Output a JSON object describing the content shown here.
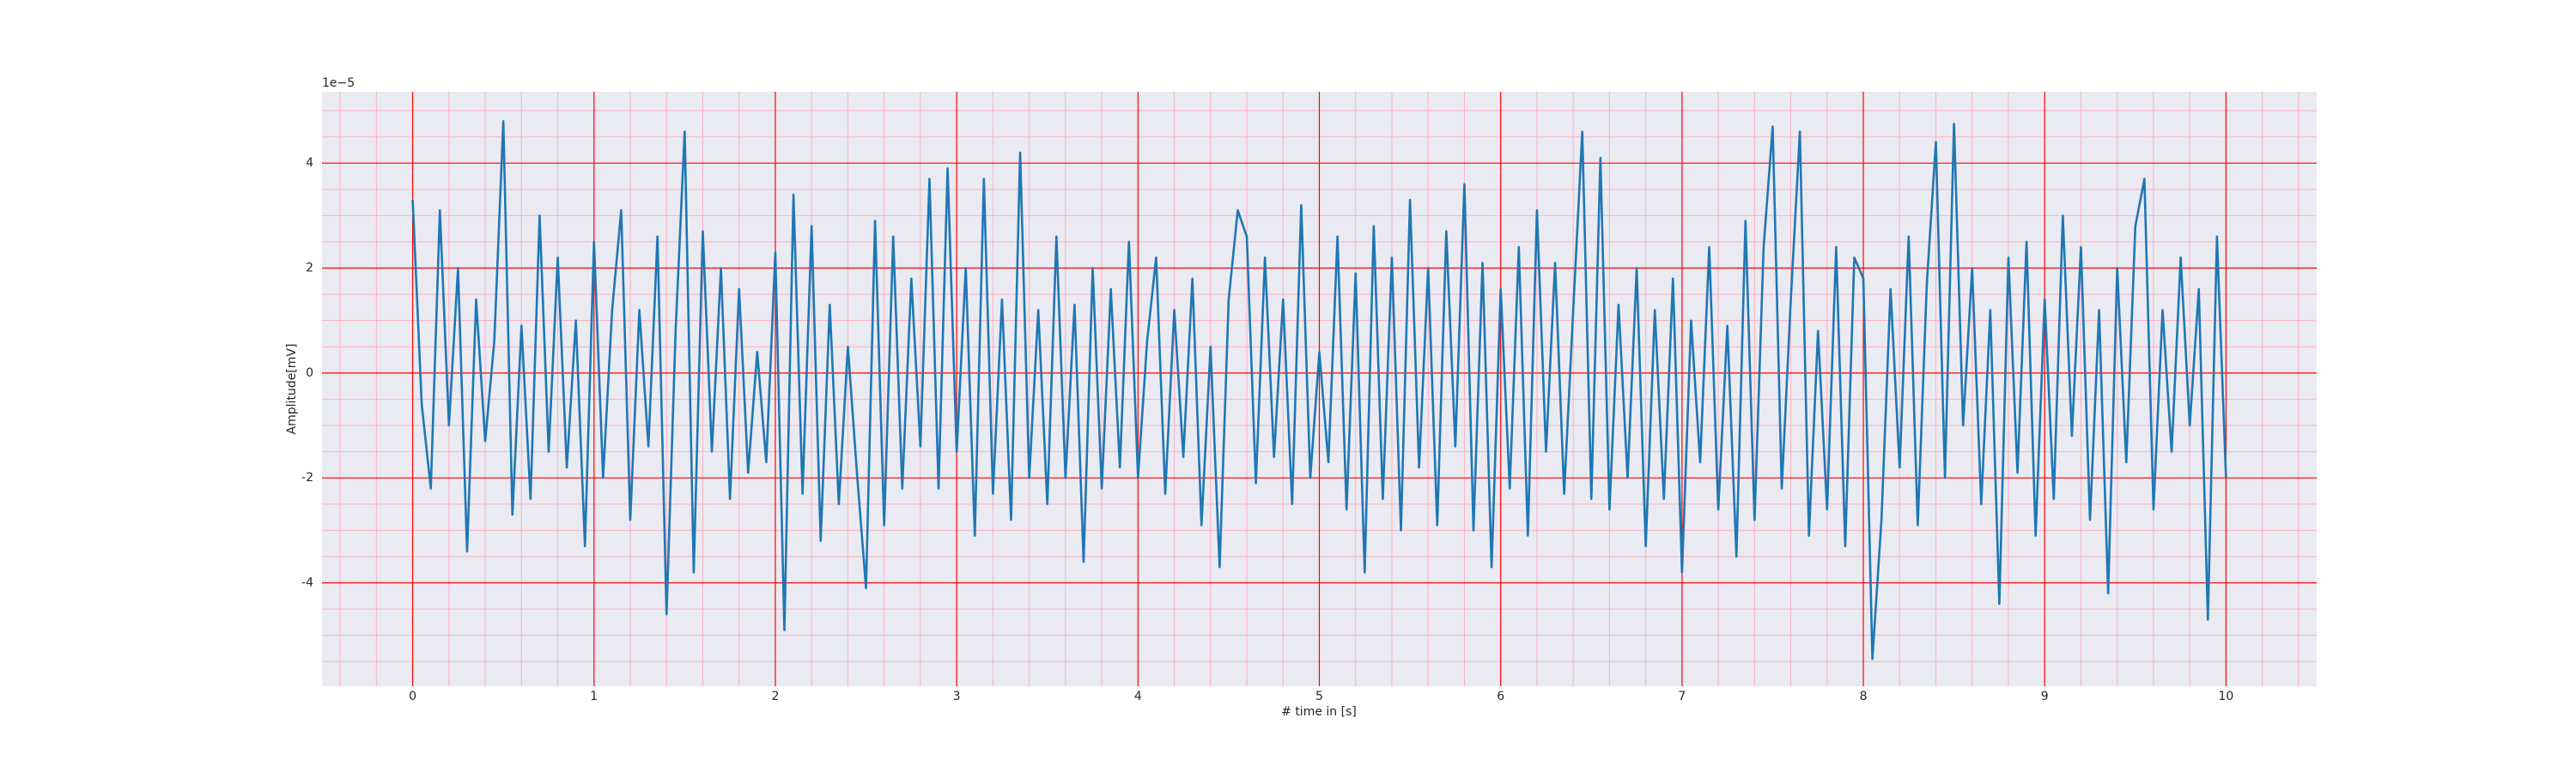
{
  "chart_data": {
    "type": "line",
    "xlabel": "# time in [s]",
    "ylabel": "Amplitude[mV]",
    "y_offset_label": "1e−5",
    "color": "#1f77b4",
    "background": "#eaeaf2",
    "grid": true,
    "grid_color": "#ff0000",
    "minor_grid_color": "#ffb0c0",
    "xlim": [
      -0.5,
      10.5
    ],
    "xticks": [
      0,
      1,
      2,
      3,
      4,
      5,
      6,
      7,
      8,
      9,
      10
    ],
    "xminorticks": [
      -0.4,
      -0.2,
      0.2,
      0.4,
      0.6,
      0.8,
      1.2,
      1.4,
      1.6,
      1.8,
      2.2,
      2.4,
      2.6,
      2.8,
      3.2,
      3.4,
      3.6,
      3.8,
      4.2,
      4.4,
      4.6,
      4.8,
      5.2,
      5.4,
      5.6,
      5.8,
      6.2,
      6.4,
      6.6,
      6.8,
      7.2,
      7.4,
      7.6,
      7.8,
      8.2,
      8.4,
      8.6,
      8.8,
      9.2,
      9.4,
      9.6,
      9.8,
      10.2,
      10.4
    ],
    "ylim": [
      -5.97,
      5.36
    ],
    "yticks": [
      -4,
      -2,
      0,
      2,
      4
    ],
    "yminorticks": [
      -5.5,
      -5,
      -4.5,
      -3.5,
      -3,
      -2.5,
      -1.5,
      -1,
      -0.5,
      0.5,
      1,
      1.5,
      2.5,
      3,
      3.5,
      4.5,
      5
    ],
    "x": [
      0,
      0.05,
      0.1,
      0.15,
      0.2,
      0.25,
      0.3,
      0.35,
      0.4,
      0.45,
      0.5,
      0.55,
      0.6,
      0.65,
      0.7,
      0.75,
      0.8,
      0.85,
      0.9,
      0.95,
      1,
      1.05,
      1.1,
      1.15,
      1.2,
      1.25,
      1.3,
      1.35,
      1.4,
      1.45,
      1.5,
      1.55,
      1.6,
      1.65,
      1.7,
      1.75,
      1.8,
      1.85,
      1.9,
      1.95,
      2,
      2.05,
      2.1,
      2.15,
      2.2,
      2.25,
      2.3,
      2.35,
      2.4,
      2.45,
      2.5,
      2.55,
      2.6,
      2.65,
      2.7,
      2.75,
      2.8,
      2.85,
      2.9,
      2.95,
      3,
      3.05,
      3.1,
      3.15,
      3.2,
      3.25,
      3.3,
      3.35,
      3.4,
      3.45,
      3.5,
      3.55,
      3.6,
      3.65,
      3.7,
      3.75,
      3.8,
      3.85,
      3.9,
      3.95,
      4,
      4.05,
      4.1,
      4.15,
      4.2,
      4.25,
      4.3,
      4.35,
      4.4,
      4.45,
      4.5,
      4.55,
      4.6,
      4.65,
      4.7,
      4.75,
      4.8,
      4.85,
      4.9,
      4.95,
      5,
      5.05,
      5.1,
      5.15,
      5.2,
      5.25,
      5.3,
      5.35,
      5.4,
      5.45,
      5.5,
      5.55,
      5.6,
      5.65,
      5.7,
      5.75,
      5.8,
      5.85,
      5.9,
      5.95,
      6,
      6.05,
      6.1,
      6.15,
      6.2,
      6.25,
      6.3,
      6.35,
      6.4,
      6.45,
      6.5,
      6.55,
      6.6,
      6.65,
      6.7,
      6.75,
      6.8,
      6.85,
      6.9,
      6.95,
      7,
      7.05,
      7.1,
      7.15,
      7.2,
      7.25,
      7.3,
      7.35,
      7.4,
      7.45,
      7.5,
      7.55,
      7.6,
      7.65,
      7.7,
      7.75,
      7.8,
      7.85,
      7.9,
      7.95,
      8,
      8.05,
      8.1,
      8.15,
      8.2,
      8.25,
      8.3,
      8.35,
      8.4,
      8.45,
      8.5,
      8.55,
      8.6,
      8.65,
      8.7,
      8.75,
      8.8,
      8.85,
      8.9,
      8.95,
      9,
      9.05,
      9.1,
      9.15,
      9.2,
      9.25,
      9.3,
      9.35,
      9.4,
      9.45,
      9.5,
      9.55,
      9.6,
      9.65,
      9.7,
      9.75,
      9.8,
      9.85,
      9.9,
      9.95,
      10
    ],
    "values": [
      3.3,
      -0.6,
      -2.2,
      3.1,
      -1.0,
      2.0,
      -3.4,
      1.4,
      -1.3,
      0.6,
      4.8,
      -2.7,
      0.9,
      -2.4,
      3.0,
      -1.5,
      2.2,
      -1.8,
      1.0,
      -3.3,
      2.5,
      -2.0,
      1.2,
      3.1,
      -2.8,
      1.2,
      -1.4,
      2.6,
      -4.6,
      0.8,
      4.6,
      -3.8,
      2.7,
      -1.5,
      2.0,
      -2.4,
      1.6,
      -1.9,
      0.4,
      -1.7,
      2.3,
      -4.9,
      3.4,
      -2.3,
      2.8,
      -3.2,
      1.3,
      -2.5,
      0.5,
      -1.9,
      -4.1,
      2.9,
      -2.9,
      2.6,
      -2.2,
      1.8,
      -1.4,
      3.7,
      -2.2,
      3.9,
      -1.5,
      2.0,
      -3.1,
      3.7,
      -2.3,
      1.4,
      -2.8,
      4.2,
      -2.0,
      1.2,
      -2.5,
      2.6,
      -2.0,
      1.3,
      -3.6,
      2.0,
      -2.2,
      1.6,
      -1.8,
      2.5,
      -2.0,
      0.6,
      2.2,
      -2.3,
      1.2,
      -1.6,
      1.8,
      -2.9,
      0.5,
      -3.7,
      1.4,
      3.1,
      2.6,
      -2.1,
      2.2,
      -1.6,
      1.4,
      -2.5,
      3.2,
      -2.0,
      0.4,
      -1.7,
      2.6,
      -2.6,
      1.9,
      -3.8,
      2.8,
      -2.4,
      2.2,
      -3.0,
      3.3,
      -1.8,
      2.0,
      -2.9,
      2.7,
      -1.4,
      3.6,
      -3.0,
      2.1,
      -3.7,
      1.6,
      -2.2,
      2.4,
      -3.1,
      3.1,
      -1.5,
      2.1,
      -2.3,
      1.2,
      4.6,
      -2.4,
      4.1,
      -2.6,
      1.3,
      -2.0,
      2.0,
      -3.3,
      1.2,
      -2.4,
      1.8,
      -3.8,
      1.0,
      -1.7,
      2.4,
      -2.6,
      0.9,
      -3.5,
      2.9,
      -2.8,
      2.4,
      4.7,
      -2.2,
      1.4,
      4.6,
      -3.1,
      0.8,
      -2.6,
      2.4,
      -3.3,
      2.2,
      1.8,
      -5.45,
      -2.8,
      1.6,
      -1.8,
      2.6,
      -2.9,
      1.7,
      4.4,
      -2.0,
      4.75,
      -1.0,
      2.0,
      -2.5,
      1.2,
      -4.4,
      2.2,
      -1.9,
      2.5,
      -3.1,
      1.4,
      -2.4,
      3.0,
      -1.2,
      2.4,
      -2.8,
      1.2,
      -4.2,
      2.0,
      -1.7,
      2.8,
      3.7,
      -2.6,
      1.2,
      -1.5,
      2.2,
      -1.0,
      1.6,
      -4.7,
      2.6,
      -2.0
    ]
  }
}
